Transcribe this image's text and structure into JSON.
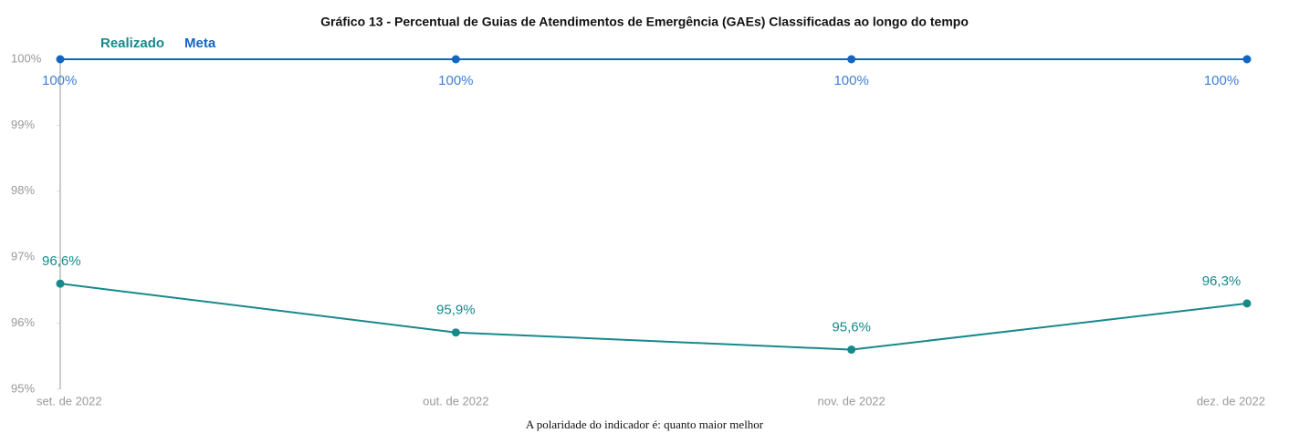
{
  "chart_data": {
    "type": "line",
    "title": "Gráfico 13 - Percentual de Guias de Atendimentos de Emergência (GAEs) Classificadas ao longo do tempo",
    "categories": [
      "set. de 2022",
      "out. de 2022",
      "nov. de 2022",
      "dez. de 2022"
    ],
    "series": [
      {
        "name": "Realizado",
        "color": "#17898b",
        "values": [
          96.6,
          95.86,
          95.6,
          96.3
        ],
        "value_labels": [
          "96,6%",
          "95,9%",
          "95,6%",
          "96,3%"
        ]
      },
      {
        "name": "Meta",
        "color": "#1565c0",
        "values": [
          100,
          100,
          100,
          100
        ],
        "value_labels": [
          "100%",
          "100%",
          "100%",
          "100%"
        ]
      }
    ],
    "ylim": [
      95,
      100
    ],
    "yticks": [
      {
        "value": 95,
        "label": "95%"
      },
      {
        "value": 96,
        "label": "96%"
      },
      {
        "value": 97,
        "label": "97%"
      },
      {
        "value": 98,
        "label": "98%"
      },
      {
        "value": 99,
        "label": "99%"
      },
      {
        "value": 100,
        "label": "100%"
      }
    ],
    "note": "A polaridade do indicador é: quanto maior melhor"
  }
}
